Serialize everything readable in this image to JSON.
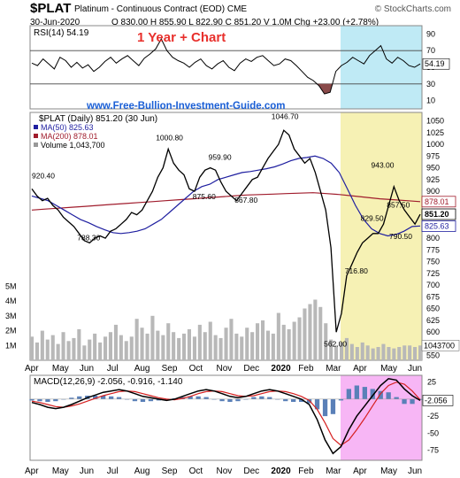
{
  "header": {
    "symbol": "$PLAT",
    "description": "Platinum - Continuous Contract (EOD)",
    "exchange": "CME",
    "date": "30-Jun-2020",
    "ohlc": "O 830.00 H 855.90 L 822.90 C 851.20 V 1.0M Chg +23.00 (+2.78%)",
    "copyright": "© StockCharts.com"
  },
  "overlay": {
    "title": "1 Year + Chart",
    "site": "www.Free-Bullion-Investment-Guide.com"
  },
  "colors": {
    "price": "#000000",
    "ma50": "#1f1fa0",
    "ma200": "#a01c2c",
    "volume": "#b8b8b8",
    "rsi_highlight": "#bfeaf5",
    "price_highlight": "#f6f1b4",
    "macd_highlight": "#f7b6f5",
    "rsi_oversold_fill": "#8a4a4a",
    "title_red": "#e8302c",
    "site_blue": "#1a5fd6",
    "macd_hist": "#5a80b8"
  },
  "chart_data": [
    {
      "type": "line",
      "name": "rsi",
      "legend": "RSI(14) 54.19",
      "ylim": [
        0,
        100
      ],
      "y_ticks": [
        "90",
        "70",
        "50",
        "30",
        "10"
      ],
      "tick_values": [
        90,
        70,
        50,
        30,
        10
      ],
      "reference_lines": [
        70,
        30
      ],
      "last_value_label": "54.19",
      "values": [
        55,
        52,
        60,
        54,
        48,
        62,
        58,
        50,
        56,
        49,
        53,
        45,
        50,
        57,
        62,
        55,
        60,
        64,
        58,
        52,
        61,
        66,
        72,
        84,
        70,
        62,
        58,
        55,
        50,
        56,
        60,
        52,
        48,
        54,
        58,
        50,
        46,
        55,
        60,
        57,
        62,
        64,
        58,
        52,
        54,
        60,
        58,
        52,
        45,
        38,
        34,
        28,
        18,
        20,
        45,
        52,
        56,
        62,
        58,
        54,
        64,
        70,
        76,
        60,
        55,
        62,
        58,
        52,
        50,
        54
      ]
    },
    {
      "type": "line",
      "name": "price",
      "legend": [
        "$PLAT (Daily) 851.20 (30 Jun)",
        "MA(50) 825.63",
        "MA(200) 878.01",
        "Volume 1,043,700"
      ],
      "ylim": [
        540,
        1068
      ],
      "y_ticks": [
        "1050",
        "1025",
        "1000",
        "975",
        "950",
        "925",
        "900",
        "875",
        "850",
        "825",
        "800",
        "775",
        "750",
        "725",
        "700",
        "675",
        "650",
        "625",
        "600",
        "575",
        "550"
      ],
      "tick_values": [
        1050,
        1025,
        1000,
        975,
        950,
        925,
        900,
        875,
        850,
        825,
        800,
        775,
        750,
        725,
        700,
        675,
        650,
        625,
        600,
        575,
        550
      ],
      "x_ticks": [
        "Apr",
        "May",
        "Jun",
        "Jul",
        "Aug",
        "Sep",
        "Oct",
        "Nov",
        "Dec",
        "2020",
        "Feb",
        "Mar",
        "Apr",
        "May",
        "Jun"
      ],
      "volume_ticks": [
        "5M",
        "4M",
        "3M",
        "2M",
        "1M"
      ],
      "volume_tick_values": [
        5,
        4,
        3,
        2,
        1
      ],
      "right_labels": [
        "878.01",
        "851.20",
        "825.63",
        "1043700"
      ],
      "right_label_values": [
        878.01,
        851.2,
        825.63
      ],
      "annotations": [
        {
          "text": "920.40",
          "x": 0,
          "y": 920.4
        },
        {
          "text": "788.30",
          "x": 11,
          "y": 788.3
        },
        {
          "text": "1000.80",
          "x": 26,
          "y": 1000.8
        },
        {
          "text": "875.60",
          "x": 33,
          "y": 875.6
        },
        {
          "text": "959.90",
          "x": 36,
          "y": 959.9
        },
        {
          "text": "867.80",
          "x": 41,
          "y": 867.8
        },
        {
          "text": "1046.70",
          "x": 48,
          "y": 1046.7
        },
        {
          "text": "829.50",
          "x": 65,
          "y": 829.5
        },
        {
          "text": "943.00",
          "x": 67,
          "y": 943
        },
        {
          "text": "857.50",
          "x": 70,
          "y": 857.5
        },
        {
          "text": "716.80",
          "x": 62,
          "y": 716.8
        },
        {
          "text": "790.50",
          "x": 71,
          "y": 790.5
        },
        {
          "text": "562.00",
          "x": 58,
          "y": 562
        }
      ],
      "close": [
        905,
        890,
        880,
        885,
        870,
        860,
        845,
        835,
        825,
        810,
        795,
        790,
        800,
        805,
        800,
        815,
        820,
        830,
        840,
        855,
        850,
        860,
        880,
        900,
        930,
        950,
        990,
        960,
        945,
        935,
        905,
        900,
        930,
        945,
        950,
        945,
        920,
        900,
        890,
        880,
        895,
        910,
        925,
        930,
        950,
        970,
        985,
        1000,
        1030,
        1020,
        990,
        975,
        960,
        970,
        940,
        900,
        860,
        780,
        600,
        640,
        720,
        745,
        770,
        790,
        800,
        810,
        810,
        830,
        870,
        910,
        880,
        860,
        845,
        830,
        851
      ],
      "ma50": [
        890,
        885,
        880,
        870,
        860,
        850,
        840,
        833,
        825,
        818,
        812,
        810,
        812,
        815,
        820,
        830,
        840,
        855,
        870,
        885,
        900,
        910,
        915,
        925,
        930,
        935,
        940,
        942,
        945,
        948,
        952,
        958,
        965,
        970,
        972,
        975,
        970,
        960,
        940,
        905,
        870,
        840,
        820,
        810,
        805,
        808,
        815,
        825,
        826
      ],
      "ma200": [
        860,
        862,
        864,
        866,
        868,
        870,
        872,
        874,
        876,
        878,
        880,
        882,
        884,
        886,
        888,
        890,
        892,
        893,
        894,
        895,
        896,
        897,
        895,
        893,
        890,
        887,
        884,
        882,
        880,
        878
      ],
      "volume": [
        1.6,
        1.2,
        2.0,
        1.4,
        1.7,
        1.1,
        1.9,
        1.3,
        1.5,
        2.1,
        1.0,
        1.4,
        1.8,
        1.2,
        1.6,
        1.9,
        2.4,
        1.7,
        1.3,
        1.6,
        2.8,
        2.2,
        1.8,
        3.0,
        2.0,
        1.7,
        2.5,
        1.9,
        1.5,
        1.8,
        2.1,
        1.6,
        2.4,
        1.9,
        2.6,
        1.7,
        1.5,
        2.2,
        2.8,
        1.8,
        1.6,
        2.2,
        1.9,
        2.5,
        2.7,
        2.0,
        1.8,
        3.2,
        2.4,
        2.1,
        2.6,
        2.9,
        3.5,
        3.8,
        4.1,
        3.6,
        2.5,
        1.4,
        1.0,
        1.2,
        1.5,
        1.1,
        0.9,
        1.2,
        1.0,
        0.8,
        0.9,
        1.1,
        0.9,
        0.8,
        0.9,
        1.0,
        1.0,
        0.9,
        1.0
      ]
    },
    {
      "type": "line",
      "name": "macd",
      "legend": "MACD(12,26,9) -2.056, -0.916, -1.140",
      "ylim": [
        -90,
        35
      ],
      "y_ticks": [
        "25",
        "0",
        "-25",
        "-50",
        "-75"
      ],
      "tick_values": [
        25,
        0,
        -25,
        -50,
        -75
      ],
      "x_ticks": [
        "Apr",
        "May",
        "Jun",
        "Jul",
        "Aug",
        "Sep",
        "Oct",
        "Nov",
        "Dec",
        "2020",
        "Feb",
        "Mar",
        "Apr",
        "May",
        "Jun"
      ],
      "last_value_label": "-2.056",
      "macd": [
        -5,
        -8,
        -12,
        -14,
        -12,
        -8,
        -3,
        2,
        6,
        10,
        12,
        14,
        12,
        8,
        4,
        2,
        0,
        -2,
        0,
        4,
        8,
        12,
        14,
        12,
        8,
        4,
        2,
        4,
        8,
        12,
        14,
        12,
        8,
        4,
        0,
        -8,
        -30,
        -60,
        -80,
        -70,
        -45,
        -25,
        -10,
        5,
        20,
        30,
        28,
        15,
        5,
        -2
      ],
      "signal": [
        -3,
        -5,
        -8,
        -11,
        -12,
        -10,
        -7,
        -3,
        1,
        5,
        8,
        11,
        12,
        11,
        8,
        5,
        2,
        0,
        -1,
        1,
        4,
        8,
        11,
        12,
        11,
        8,
        5,
        4,
        5,
        8,
        11,
        12,
        11,
        8,
        4,
        -2,
        -15,
        -35,
        -58,
        -68,
        -60,
        -45,
        -28,
        -10,
        8,
        20,
        25,
        22,
        12,
        -1
      ]
    }
  ]
}
